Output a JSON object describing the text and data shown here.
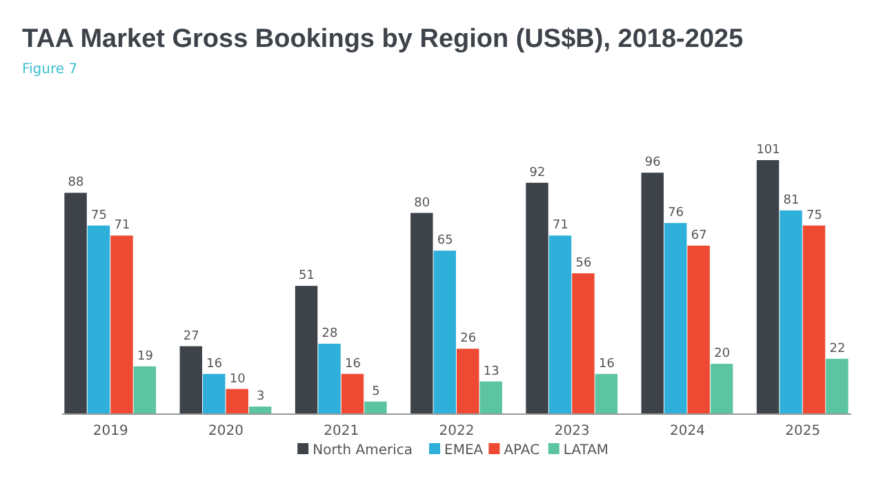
{
  "chart_data": {
    "type": "bar",
    "title": "TAA Market Gross Bookings by Region (US$B), 2018-2025",
    "subtitle": "Figure 7",
    "categories": [
      "2019",
      "2020",
      "2021",
      "2022",
      "2023",
      "2024",
      "2025"
    ],
    "series": [
      {
        "name": "North America",
        "color": "#3d4349",
        "values": [
          88,
          27,
          51,
          80,
          92,
          96,
          101
        ]
      },
      {
        "name": "EMEA",
        "color": "#2fb0da",
        "values": [
          75,
          16,
          28,
          65,
          71,
          76,
          81
        ]
      },
      {
        "name": "APAC",
        "color": "#ee4a33",
        "values": [
          71,
          10,
          16,
          26,
          56,
          67,
          75
        ]
      },
      {
        "name": "LATAM",
        "color": "#5cc4a0",
        "values": [
          19,
          3,
          5,
          13,
          16,
          20,
          22
        ]
      }
    ],
    "data_labels": true,
    "legend": "bottom"
  }
}
